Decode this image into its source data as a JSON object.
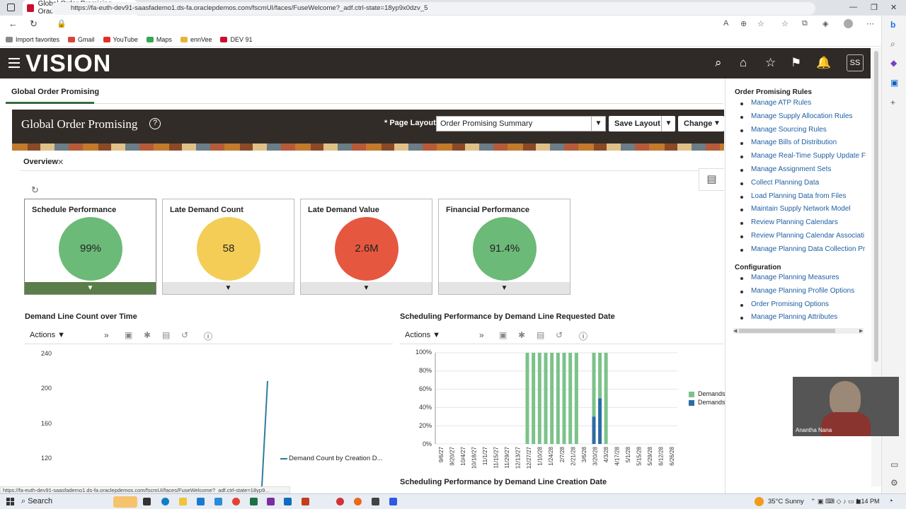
{
  "browser": {
    "tab_title": "Global Order Promising - Oracle",
    "url": "https://fa-euth-dev91-saasfademo1.ds-fa.oraclepdemos.com/fscmUI/faces/FuseWelcome?_adf.ctrl-state=18yp9x0dzv_5",
    "favorites": [
      "Import favorites",
      "Gmail",
      "YouTube",
      "Maps",
      "ennVee",
      "DEV 91"
    ],
    "status_url": "https://fa-euth-dev91-saasfademo1.ds-fa.oraclepdemos.com/fscmUI/faces/FuseWelcome?_adf.ctrl-state=18yp9..."
  },
  "header": {
    "logo": "VISION",
    "avatar": "SS"
  },
  "page_tab": "Global Order Promising",
  "banner": {
    "title": "Global Order Promising",
    "page_layout_label": "* Page Layout",
    "page_layout_value": "Order Promising Summary",
    "save_layout": "Save Layout",
    "change": "Change"
  },
  "overview_tab": "Overview",
  "cards": [
    {
      "title": "Schedule Performance",
      "value": "99%",
      "color": "#6cba78"
    },
    {
      "title": "Late Demand Count",
      "value": "58",
      "color": "#f3cd55"
    },
    {
      "title": "Late Demand Value",
      "value": "2.6M",
      "color": "#e5583f"
    },
    {
      "title": "Financial Performance",
      "value": "91.4%",
      "color": "#6cba78"
    }
  ],
  "chart1": {
    "title": "Demand Line Count over Time",
    "actions": "Actions",
    "legend": "Demand Count by Creation D...",
    "yticks": [
      "240",
      "200",
      "160",
      "120"
    ]
  },
  "chart2": {
    "title": "Scheduling Performance by Demand Line Requested Date",
    "actions": "Actions",
    "legend": [
      "Demands",
      "Demands"
    ],
    "yticks": [
      "100%",
      "80%",
      "60%",
      "40%",
      "20%",
      "0%"
    ],
    "xticks": [
      "9/6/27",
      "9/20/27",
      "10/4/27",
      "10/18/27",
      "11/1/27",
      "11/15/27",
      "11/29/27",
      "12/13/27",
      "12/27/27",
      "1/10/28",
      "1/24/28",
      "2/7/28",
      "2/21/28",
      "3/6/28",
      "3/20/28",
      "4/3/28",
      "4/17/28",
      "5/1/28",
      "5/15/28",
      "5/29/28",
      "6/12/28",
      "6/26/28"
    ],
    "series_colors": [
      "#7cc28a",
      "#2e6da4"
    ]
  },
  "chart3_title": "Scheduling Performance by Demand Line Creation Date",
  "chart_data": [
    {
      "type": "line",
      "title": "Demand Line Count over Time",
      "ylim": [
        100,
        240
      ],
      "series": [
        {
          "name": "Demand Count by Creation D...",
          "values": [
            100,
            210
          ]
        }
      ]
    },
    {
      "type": "bar",
      "title": "Scheduling Performance by Demand Line Requested Date",
      "categories": [
        "12/27/27",
        "1/10/28",
        "1/24/28",
        "2/7/28",
        "2/21/28",
        "3/20/28",
        "4/3/28"
      ],
      "series": [
        {
          "name": "Demands",
          "values": [
            100,
            100,
            100,
            100,
            100,
            70,
            50
          ]
        },
        {
          "name": "Demands",
          "values": [
            0,
            0,
            0,
            0,
            0,
            30,
            50
          ]
        }
      ],
      "ylim": [
        0,
        100
      ]
    }
  ],
  "right_panel": {
    "section1": "Order Promising Rules",
    "links1": [
      "Manage ATP Rules",
      "Manage Supply Allocation Rules",
      "Manage Sourcing Rules",
      "Manage Bills of Distribution",
      "Manage Real-Time Supply Update F",
      "Manage Assignment Sets",
      "Collect Planning Data",
      "Load Planning Data from Files",
      "Maintain Supply Network Model",
      "Review Planning Calendars",
      "Review Planning Calendar Associati",
      "Manage Planning Data Collection Pr"
    ],
    "section2": "Configuration",
    "links2": [
      "Manage Planning Measures",
      "Manage Planning Profile Options",
      "Order Promising Options",
      "Manage Planning Attributes"
    ]
  },
  "video_name": "Anantha Nana",
  "taskbar": {
    "search": "Search",
    "weather": "35°C  Sunny",
    "time": "1:14 PM"
  }
}
